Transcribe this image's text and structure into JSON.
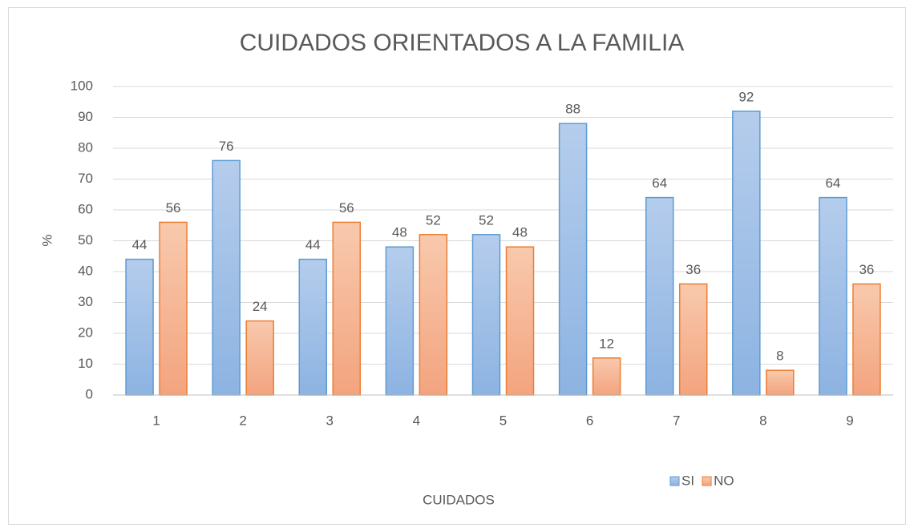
{
  "chart_data": {
    "type": "bar",
    "title": "CUIDADOS ORIENTADOS A LA FAMILIA",
    "x_label": "CUIDADOS",
    "y_label": "%",
    "categories": [
      "1",
      "2",
      "3",
      "4",
      "5",
      "6",
      "7",
      "8",
      "9"
    ],
    "series": [
      {
        "name": "SI",
        "color": "#5b9bd5",
        "values": [
          44,
          76,
          44,
          48,
          52,
          88,
          64,
          92,
          64
        ]
      },
      {
        "name": "NO",
        "color": "#ed7d31",
        "values": [
          56,
          24,
          56,
          52,
          48,
          12,
          36,
          8,
          36
        ]
      }
    ],
    "ylim": [
      0,
      100
    ],
    "yticks": [
      0,
      10,
      20,
      30,
      40,
      50,
      60,
      70,
      80,
      90,
      100
    ],
    "grid": true,
    "legend": "bottom",
    "data_labels": true
  }
}
